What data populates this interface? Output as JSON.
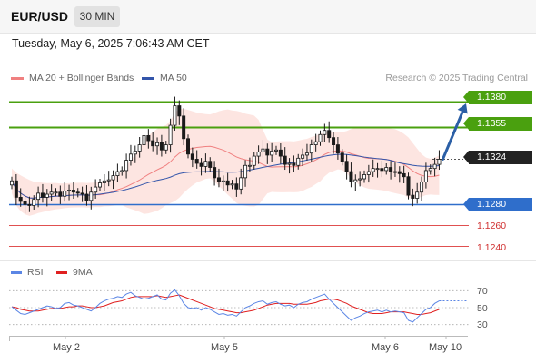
{
  "header": {
    "symbol": "EUR/USD",
    "timeframe": "30 MIN",
    "timestamp": "Tuesday, May 6, 2025 7:06:43 AM CET"
  },
  "legend": {
    "ma20_label": "MA 20 + Bollinger Bands",
    "ma50_label": "MA 50",
    "credit": "Research © 2025 Trading Central"
  },
  "colors": {
    "resistance": "#4aa00f",
    "support": "#2f6ecb",
    "target_line": "#e05050",
    "candle": "#1a1a1a",
    "ma20": "#f08080",
    "ma50": "#3355aa",
    "band_fill": "#fde0dc",
    "rsi": "#5b86e5",
    "rsi_ma": "#e02020",
    "arrow": "#2b5fa6"
  },
  "levels": {
    "r1": "1.1380",
    "r2": "1.1355",
    "last": "1.1324",
    "s1": "1.1280",
    "t1": "1.1260",
    "t2": "1.1240"
  },
  "rsi_panel": {
    "rsi_label": "RSI",
    "ma_label": "9MA",
    "ticks": [
      "70",
      "50",
      "30"
    ]
  },
  "x_axis": {
    "ticks": [
      "May 2",
      "May 5",
      "May 6",
      "May 10"
    ]
  },
  "chart_data": {
    "type": "candlestick",
    "instrument": "EUR/USD",
    "timeframe": "30 MIN",
    "ylim": [
      1.123,
      1.1395
    ],
    "price_levels": [
      {
        "value": 1.138,
        "role": "resistance"
      },
      {
        "value": 1.1355,
        "role": "resistance"
      },
      {
        "value": 1.1324,
        "role": "last"
      },
      {
        "value": 1.128,
        "role": "support"
      },
      {
        "value": 1.126,
        "role": "target"
      },
      {
        "value": 1.124,
        "role": "target"
      }
    ],
    "closes": [
      1.1303,
      1.1287,
      1.1283,
      1.128,
      1.1279,
      1.1285,
      1.1291,
      1.1287,
      1.129,
      1.1292,
      1.1292,
      1.1288,
      1.1293,
      1.1294,
      1.1292,
      1.1291,
      1.129,
      1.1284,
      1.1292,
      1.1297,
      1.1301,
      1.1303,
      1.1304,
      1.1308,
      1.1312,
      1.1313,
      1.1323,
      1.1329,
      1.1332,
      1.1338,
      1.1347,
      1.1342,
      1.1337,
      1.134,
      1.1333,
      1.1338,
      1.1357,
      1.1376,
      1.1366,
      1.1344,
      1.1329,
      1.1324,
      1.132,
      1.1317,
      1.1322,
      1.1316,
      1.1306,
      1.1302,
      1.1303,
      1.1299,
      1.13,
      1.1295,
      1.1306,
      1.1318,
      1.1318,
      1.1327,
      1.1331,
      1.1334,
      1.1328,
      1.1332,
      1.1333,
      1.1327,
      1.1319,
      1.132,
      1.1318,
      1.1325,
      1.1328,
      1.133,
      1.1338,
      1.1341,
      1.1348,
      1.1352,
      1.1345,
      1.1338,
      1.133,
      1.1322,
      1.1312,
      1.1302,
      1.1304,
      1.1305,
      1.1309,
      1.1312,
      1.1315,
      1.1315,
      1.1313,
      1.1316,
      1.1312,
      1.1312,
      1.131,
      1.1307,
      1.1289,
      1.1286,
      1.1292,
      1.1302,
      1.1313,
      1.1315,
      1.1319,
      1.1324
    ],
    "rsi": [
      51,
      47,
      43,
      42,
      44,
      46,
      48,
      50,
      52,
      51,
      49,
      50,
      55,
      56,
      53,
      52,
      50,
      48,
      46,
      50,
      55,
      58,
      60,
      61,
      63,
      62,
      66,
      68,
      64,
      62,
      60,
      61,
      63,
      65,
      60,
      59,
      67,
      71,
      64,
      55,
      50,
      49,
      50,
      47,
      50,
      48,
      45,
      42,
      43,
      41,
      42,
      40,
      45,
      50,
      52,
      55,
      57,
      58,
      54,
      56,
      57,
      54,
      52,
      53,
      50,
      54,
      56,
      57,
      60,
      62,
      64,
      66,
      60,
      55,
      50,
      45,
      40,
      35,
      38,
      40,
      43,
      45,
      46,
      47,
      45,
      47,
      45,
      46,
      45,
      44,
      35,
      33,
      38,
      43,
      48,
      50,
      55,
      58
    ],
    "rsi_ma": [
      51,
      50,
      48,
      47,
      46,
      46,
      46,
      47,
      48,
      49,
      49,
      49,
      50,
      51,
      51,
      52,
      52,
      51,
      50,
      50,
      51,
      52,
      54,
      56,
      57,
      58,
      60,
      62,
      63,
      63,
      63,
      63,
      63,
      64,
      63,
      62,
      63,
      64,
      65,
      63,
      61,
      59,
      57,
      55,
      53,
      51,
      49,
      48,
      47,
      46,
      45,
      44,
      44,
      45,
      46,
      47,
      49,
      51,
      53,
      54,
      55,
      55,
      55,
      55,
      54,
      54,
      54,
      54,
      55,
      56,
      58,
      59,
      60,
      60,
      59,
      57,
      55,
      52,
      50,
      48,
      46,
      44,
      43,
      43,
      43,
      44,
      45,
      45,
      45,
      45,
      44,
      43,
      42,
      42,
      43,
      44,
      46,
      48
    ],
    "rsi_ylim": [
      20,
      80
    ],
    "projection": {
      "from": 1.1324,
      "to": 1.138
    }
  }
}
